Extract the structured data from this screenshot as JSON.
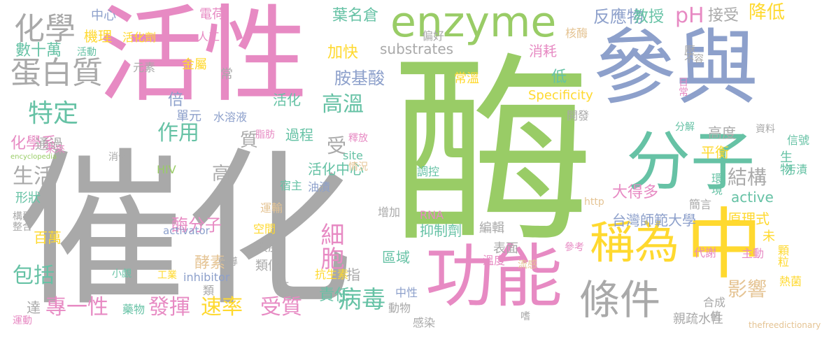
{
  "palette": {
    "gray": "#a9a9a9",
    "green": "#99cc66",
    "pink": "#e78ac3",
    "blue": "#8da0cb",
    "teal": "#66c2a5",
    "yellow": "#ffd92f",
    "orange": "#e5c494"
  },
  "words": [
    {
      "text": "酶",
      "color": "green"
    },
    {
      "text": "催化",
      "color": "gray"
    },
    {
      "text": "活性",
      "color": "pink"
    },
    {
      "text": "參與",
      "color": "blue"
    },
    {
      "text": "中",
      "color": "yellow"
    },
    {
      "text": "功能",
      "color": "pink"
    },
    {
      "text": "enzyme",
      "color": "green"
    },
    {
      "text": "分子",
      "color": "teal"
    },
    {
      "text": "稱為",
      "color": "yellow"
    },
    {
      "text": "條件",
      "color": "gray"
    },
    {
      "text": "蛋白質",
      "color": "gray"
    },
    {
      "text": "化學",
      "color": "gray"
    },
    {
      "text": "特定",
      "color": "teal"
    },
    {
      "text": "細胞",
      "color": "pink"
    },
    {
      "text": "病毒",
      "color": "teal"
    },
    {
      "text": "pH",
      "color": "pink"
    },
    {
      "text": "降低",
      "color": "yellow"
    },
    {
      "text": "結構",
      "color": "gray"
    },
    {
      "text": "影響",
      "color": "orange"
    },
    {
      "text": "高溫",
      "color": "teal"
    },
    {
      "text": "作用",
      "color": "teal"
    },
    {
      "text": "專一性",
      "color": "pink"
    },
    {
      "text": "發揮",
      "color": "pink"
    },
    {
      "text": "速率",
      "color": "yellow"
    },
    {
      "text": "受質",
      "color": "pink"
    },
    {
      "text": "包括",
      "color": "teal"
    },
    {
      "text": "生活",
      "color": "gray"
    },
    {
      "text": "酶分子",
      "color": "pink"
    },
    {
      "text": "胺基酸",
      "color": "blue"
    },
    {
      "text": "反應物",
      "color": "blue"
    },
    {
      "text": "教授",
      "color": "teal"
    },
    {
      "text": "接受",
      "color": "gray"
    },
    {
      "text": "substrates",
      "color": "gray"
    },
    {
      "text": "葉名倉",
      "color": "teal"
    },
    {
      "text": "數十萬",
      "color": "teal"
    },
    {
      "text": "機理",
      "color": "yellow"
    },
    {
      "text": "中心",
      "color": "blue"
    },
    {
      "text": "化學系",
      "color": "pink"
    },
    {
      "text": "台灣師範大學",
      "color": "blue"
    },
    {
      "text": "原理式",
      "color": "yellow"
    },
    {
      "text": "大得多",
      "color": "pink"
    },
    {
      "text": "平衡",
      "color": "yellow"
    },
    {
      "text": "高度",
      "color": "gray"
    },
    {
      "text": "活化中心",
      "color": "teal"
    },
    {
      "text": "過程",
      "color": "teal"
    },
    {
      "text": "責任",
      "color": "teal"
    },
    {
      "text": "抑制劑",
      "color": "teal"
    },
    {
      "text": "酵素",
      "color": "orange"
    },
    {
      "text": "區域",
      "color": "teal"
    },
    {
      "text": "active",
      "color": "teal"
    },
    {
      "text": "Specificity",
      "color": "yellow"
    },
    {
      "text": "環境",
      "color": "teal"
    },
    {
      "text": "生物",
      "color": "teal"
    },
    {
      "text": "加快",
      "color": "yellow"
    },
    {
      "text": "消耗",
      "color": "pink"
    },
    {
      "text": "低",
      "color": "teal"
    },
    {
      "text": "倍",
      "color": "blue"
    },
    {
      "text": "活化",
      "color": "teal"
    },
    {
      "text": "受",
      "color": "gray"
    },
    {
      "text": "質",
      "color": "gray"
    },
    {
      "text": "高",
      "color": "gray"
    },
    {
      "text": "通過",
      "color": "gray"
    },
    {
      "text": "形狀",
      "color": "teal"
    },
    {
      "text": "百萬",
      "color": "yellow"
    },
    {
      "text": "達",
      "color": "gray"
    },
    {
      "text": "指",
      "color": "gray"
    },
    {
      "text": "肽",
      "color": "gray"
    },
    {
      "text": "類似",
      "color": "gray"
    },
    {
      "text": "濃度",
      "color": "gray"
    },
    {
      "text": "編輯",
      "color": "gray"
    },
    {
      "text": "表面",
      "color": "gray"
    },
    {
      "text": "親疏水性",
      "color": "gray"
    },
    {
      "text": "合成",
      "color": "gray"
    },
    {
      "text": "電荷",
      "color": "pink"
    },
    {
      "text": "人工",
      "color": "pink"
    },
    {
      "text": "活化劑",
      "color": "yellow"
    },
    {
      "text": "核酶",
      "color": "orange"
    },
    {
      "text": "金屬",
      "color": "yellow"
    },
    {
      "text": "單元",
      "color": "blue"
    },
    {
      "text": "水溶液",
      "color": "blue"
    },
    {
      "text": "常溫",
      "color": "yellow"
    },
    {
      "text": "元素",
      "color": "gray"
    },
    {
      "text": "活動",
      "color": "teal"
    },
    {
      "text": "偏好",
      "color": "gray"
    },
    {
      "text": "壓",
      "color": "gray"
    },
    {
      "text": "不容",
      "color": "gray"
    },
    {
      "text": "日常",
      "color": "pink"
    },
    {
      "text": "常",
      "color": "gray"
    },
    {
      "text": "開發",
      "color": "gray"
    },
    {
      "text": "分解",
      "color": "teal"
    },
    {
      "text": "資料",
      "color": "gray"
    },
    {
      "text": "信號",
      "color": "teal"
    },
    {
      "text": "污漬",
      "color": "teal"
    },
    {
      "text": "簡言",
      "color": "gray"
    },
    {
      "text": "http",
      "color": "orange"
    },
    {
      "text": "未",
      "color": "yellow"
    },
    {
      "text": "顆粒",
      "color": "yellow"
    },
    {
      "text": "熱菌",
      "color": "yellow"
    },
    {
      "text": "主動",
      "color": "pink"
    },
    {
      "text": "代謝",
      "color": "pink"
    },
    {
      "text": "參考",
      "color": "pink"
    },
    {
      "text": "thefreedictionary",
      "color": "orange"
    },
    {
      "text": "流感",
      "color": "orange"
    },
    {
      "text": "值",
      "color": "gray"
    },
    {
      "text": "嗜",
      "color": "gray"
    },
    {
      "text": "溫度",
      "color": "pink"
    },
    {
      "text": "中性",
      "color": "blue"
    },
    {
      "text": "感染",
      "color": "gray"
    },
    {
      "text": "動物",
      "color": "gray"
    },
    {
      "text": "抗生素",
      "color": "yellow"
    },
    {
      "text": "RNA",
      "color": "pink"
    },
    {
      "text": "增加",
      "color": "gray"
    },
    {
      "text": "調控",
      "color": "teal"
    },
    {
      "text": "油漬",
      "color": "blue"
    },
    {
      "text": "宿主",
      "color": "teal"
    },
    {
      "text": "運輸",
      "color": "orange"
    },
    {
      "text": "情況",
      "color": "orange"
    },
    {
      "text": "site",
      "color": "teal"
    },
    {
      "text": "釋放",
      "color": "pink"
    },
    {
      "text": "脂肪",
      "color": "pink"
    },
    {
      "text": "轉導",
      "color": "gray"
    },
    {
      "text": "空間",
      "color": "yellow"
    },
    {
      "text": "activator",
      "color": "blue"
    },
    {
      "text": "inhibitor",
      "color": "blue"
    },
    {
      "text": "類",
      "color": "gray"
    },
    {
      "text": "工業",
      "color": "yellow"
    },
    {
      "text": "小覷",
      "color": "teal"
    },
    {
      "text": "藥物",
      "color": "teal"
    },
    {
      "text": "運動",
      "color": "pink"
    },
    {
      "text": "整合",
      "color": "gray"
    },
    {
      "text": "構型",
      "color": "gray"
    },
    {
      "text": "HIV",
      "color": "green"
    },
    {
      "text": "消化",
      "color": "gray"
    },
    {
      "text": "encyclopedia",
      "color": "green"
    },
    {
      "text": "未來",
      "color": "pink"
    }
  ]
}
